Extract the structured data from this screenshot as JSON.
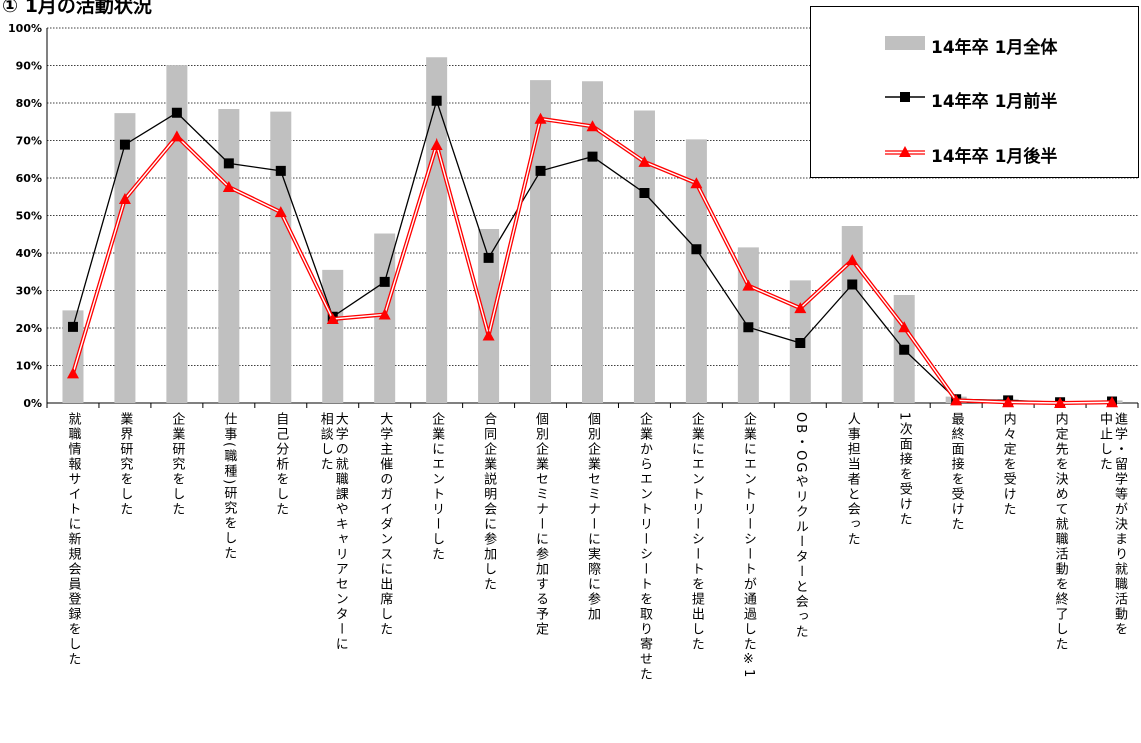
{
  "title": "① 1月の活動状況",
  "chart_data": {
    "type": "bar",
    "ylim": [
      0,
      100
    ],
    "yticks": [
      "0%",
      "10%",
      "20%",
      "30%",
      "40%",
      "50%",
      "60%",
      "70%",
      "80%",
      "90%",
      "100%"
    ],
    "grid": true,
    "legend_placement": "top-right",
    "categories": [
      "就職情報サイトに新規会員登録をした",
      "業界研究をした",
      "企業研究をした",
      "仕事(職種)研究をした",
      "自己分析をした",
      "大学の就職課やキャリアセンターに\n相談した",
      "大学主催のガイダンスに出席した",
      "企業にエントリーした",
      "合同企業説明会に参加した",
      "個別企業セミナーに参加する予定",
      "個別企業セミナーに実際に参加",
      "企業からエントリーシートを取り寄せた",
      "企業にエントリーシートを提出した",
      "企業にエントリーシートが通過した※1",
      "OB・OGやリクルーターと会った",
      "人事担当者と会った",
      "1次面接を受けた",
      "最終面接を受けた",
      "内々定を受けた",
      "内定先を決めて就職活動を終了した",
      "進学・留学等が決まり就職活動を\n中止した"
    ],
    "series": [
      {
        "name": "14年卒 1月全体",
        "kind": "bar",
        "color": "#c0c0c0",
        "values": [
          24.7,
          77.3,
          90.1,
          78.4,
          77.7,
          35.5,
          45.2,
          92.2,
          46.4,
          86.1,
          85.8,
          78.0,
          70.3,
          41.5,
          32.7,
          47.2,
          28.8,
          1.7,
          1.0,
          0.5,
          0.7
        ]
      },
      {
        "name": "14年卒 1月前半",
        "kind": "line",
        "marker": "square",
        "color": "#000000",
        "values": [
          20.3,
          68.9,
          77.4,
          63.9,
          61.9,
          23.0,
          32.3,
          80.6,
          38.7,
          61.9,
          65.7,
          56.0,
          41.0,
          20.2,
          16.0,
          31.6,
          14.2,
          1.0,
          0.7,
          0.2,
          0.4
        ]
      },
      {
        "name": "14年卒 1月後半",
        "kind": "line",
        "marker": "triangle",
        "color": "#ff0000",
        "values": [
          7.9,
          54.4,
          71.1,
          57.6,
          50.9,
          22.4,
          23.6,
          68.8,
          18.0,
          75.8,
          73.8,
          64.3,
          58.6,
          31.3,
          25.3,
          38.1,
          20.2,
          0.7,
          0.2,
          0.0,
          0.2
        ]
      }
    ]
  }
}
